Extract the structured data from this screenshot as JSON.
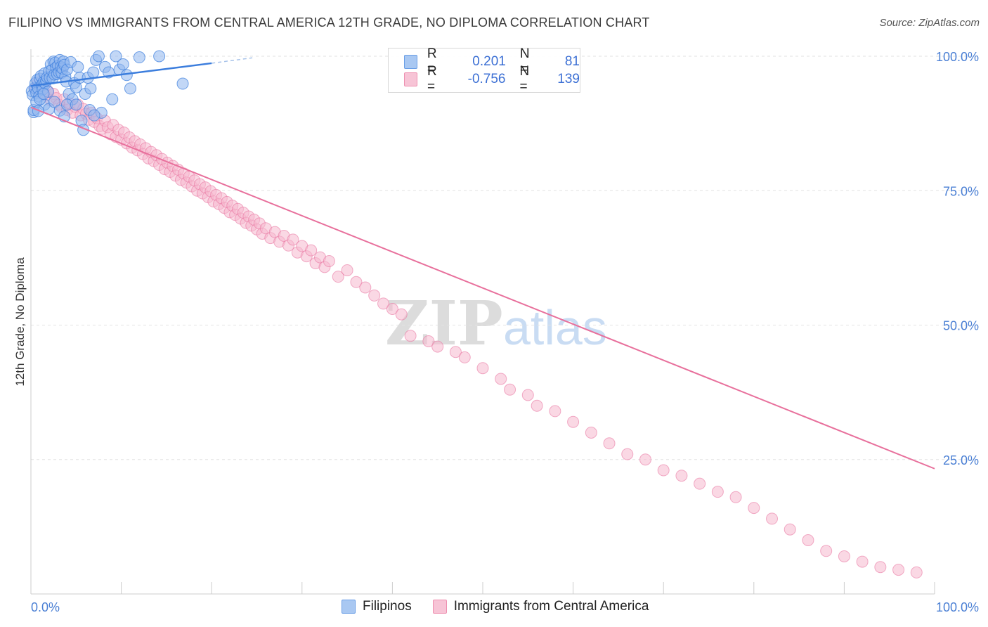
{
  "title": "FILIPINO VS IMMIGRANTS FROM CENTRAL AMERICA 12TH GRADE, NO DIPLOMA CORRELATION CHART",
  "source": "Source: ZipAtlas.com",
  "watermark": {
    "zip": "ZIP",
    "atlas": "atlas"
  },
  "legend": {
    "rows": [
      {
        "r_label": "R =",
        "r_value": "0.201",
        "n_label": "N =",
        "n_value": "81",
        "color": "#6a9ee6",
        "fill": "#a9c8f2"
      },
      {
        "r_label": "R =",
        "r_value": "-0.756",
        "n_label": "N =",
        "n_value": "139",
        "color": "#ee8fb0",
        "fill": "#f7c4d6"
      }
    ]
  },
  "bottom_legend": {
    "items": [
      "Filipinos",
      "Immigrants from Central America"
    ]
  },
  "chart_data": {
    "type": "scatter",
    "title": "FILIPINO VS IMMIGRANTS FROM CENTRAL AMERICA 12TH GRADE, NO DIPLOMA CORRELATION CHART",
    "xlabel": "",
    "ylabel": "12th Grade, No Diploma",
    "xlim": [
      0,
      100
    ],
    "ylim": [
      0,
      100
    ],
    "x_tick_labels": [
      "0.0%",
      "100.0%"
    ],
    "y_tick_labels": [
      "25.0%",
      "50.0%",
      "75.0%",
      "100.0%"
    ],
    "y_ticks": [
      25,
      50,
      75,
      100
    ],
    "grid": true,
    "series": [
      {
        "name": "Filipinos",
        "color": "#3b7ddd",
        "fill": "#8fb6ee",
        "r": 0.201,
        "n": 81,
        "trend": {
          "x0": 0,
          "y0": 94.5,
          "x1": 20,
          "y1": 98.7,
          "dash_to_x": 24.5,
          "dash_to_y": 99.7
        },
        "points": [
          [
            0.1,
            93.5
          ],
          [
            0.2,
            92.8
          ],
          [
            0.3,
            89.6
          ],
          [
            0.4,
            94.1
          ],
          [
            0.5,
            95.0
          ],
          [
            0.6,
            93.2
          ],
          [
            0.7,
            95.6
          ],
          [
            0.8,
            94.0
          ],
          [
            0.9,
            92.5
          ],
          [
            1.0,
            95.8
          ],
          [
            1.1,
            96.3
          ],
          [
            1.2,
            94.6
          ],
          [
            1.3,
            93.8
          ],
          [
            1.4,
            95.2
          ],
          [
            1.5,
            96.8
          ],
          [
            1.6,
            94.9
          ],
          [
            1.7,
            95.5
          ],
          [
            1.8,
            96.1
          ],
          [
            1.9,
            93.4
          ],
          [
            2.0,
            97.2
          ],
          [
            2.1,
            96.0
          ],
          [
            2.2,
            98.5
          ],
          [
            2.3,
            97.4
          ],
          [
            2.4,
            95.9
          ],
          [
            2.5,
            99.0
          ],
          [
            2.6,
            96.6
          ],
          [
            2.7,
            98.8
          ],
          [
            2.8,
            97.9
          ],
          [
            2.9,
            96.7
          ],
          [
            3.0,
            98.2
          ],
          [
            3.1,
            97.0
          ],
          [
            3.2,
            99.3
          ],
          [
            3.3,
            98.0
          ],
          [
            3.4,
            96.9
          ],
          [
            3.5,
            97.7
          ],
          [
            3.6,
            99.0
          ],
          [
            3.7,
            98.4
          ],
          [
            3.8,
            96.2
          ],
          [
            3.9,
            95.3
          ],
          [
            4.0,
            97.5
          ],
          [
            4.2,
            93.0
          ],
          [
            4.4,
            98.9
          ],
          [
            4.6,
            92.0
          ],
          [
            4.8,
            95.0
          ],
          [
            5.0,
            94.2
          ],
          [
            5.2,
            98.0
          ],
          [
            5.4,
            96.0
          ],
          [
            5.6,
            88.0
          ],
          [
            5.8,
            86.3
          ],
          [
            6.0,
            93.0
          ],
          [
            6.3,
            96.0
          ],
          [
            6.6,
            94.0
          ],
          [
            6.9,
            97.0
          ],
          [
            7.2,
            99.3
          ],
          [
            7.5,
            100.0
          ],
          [
            7.8,
            89.5
          ],
          [
            8.2,
            98.0
          ],
          [
            8.6,
            97.0
          ],
          [
            9.0,
            92.0
          ],
          [
            9.4,
            100.0
          ],
          [
            9.8,
            97.5
          ],
          [
            10.2,
            98.5
          ],
          [
            10.6,
            96.5
          ],
          [
            11.0,
            94.0
          ],
          [
            12.0,
            99.8
          ],
          [
            14.2,
            100.0
          ],
          [
            16.8,
            94.9
          ],
          [
            1.5,
            91.0
          ],
          [
            2.0,
            90.2
          ],
          [
            2.6,
            91.5
          ],
          [
            3.2,
            89.9
          ],
          [
            3.7,
            88.8
          ],
          [
            4.0,
            91.0
          ],
          [
            0.3,
            90.0
          ],
          [
            0.6,
            91.5
          ],
          [
            1.0,
            92.0
          ],
          [
            1.4,
            93.0
          ],
          [
            5.0,
            91.0
          ],
          [
            6.5,
            90.0
          ],
          [
            7.0,
            89.0
          ],
          [
            0.8,
            89.8
          ]
        ]
      },
      {
        "name": "Immigrants from Central America",
        "color": "#e8709c",
        "fill": "#f5b8cd",
        "r": -0.756,
        "n": 139,
        "trend": {
          "x0": 0,
          "y0": 90.5,
          "x1": 100,
          "y1": 23.3
        },
        "points": [
          [
            0.5,
            94.0
          ],
          [
            0.8,
            95.1
          ],
          [
            1.0,
            93.2
          ],
          [
            1.3,
            94.5
          ],
          [
            1.6,
            92.8
          ],
          [
            1.9,
            93.5
          ],
          [
            2.2,
            91.8
          ],
          [
            2.5,
            93.0
          ],
          [
            2.8,
            92.2
          ],
          [
            3.1,
            91.0
          ],
          [
            3.4,
            90.5
          ],
          [
            3.7,
            92.0
          ],
          [
            4.0,
            90.0
          ],
          [
            4.3,
            91.2
          ],
          [
            4.6,
            89.5
          ],
          [
            4.9,
            90.6
          ],
          [
            5.2,
            91.0
          ],
          [
            5.5,
            89.0
          ],
          [
            5.8,
            90.2
          ],
          [
            6.1,
            89.3
          ],
          [
            6.4,
            88.2
          ],
          [
            6.7,
            89.5
          ],
          [
            7.0,
            87.8
          ],
          [
            7.3,
            88.5
          ],
          [
            7.6,
            87.0
          ],
          [
            7.9,
            86.5
          ],
          [
            8.2,
            88.0
          ],
          [
            8.5,
            86.8
          ],
          [
            8.8,
            85.5
          ],
          [
            9.1,
            87.2
          ],
          [
            9.4,
            85.0
          ],
          [
            9.7,
            86.3
          ],
          [
            10.0,
            84.5
          ],
          [
            10.3,
            85.8
          ],
          [
            10.6,
            83.8
          ],
          [
            10.9,
            84.9
          ],
          [
            11.2,
            83.0
          ],
          [
            11.5,
            84.2
          ],
          [
            11.8,
            82.5
          ],
          [
            12.1,
            83.6
          ],
          [
            12.4,
            81.8
          ],
          [
            12.7,
            82.9
          ],
          [
            13.0,
            81.0
          ],
          [
            13.3,
            82.2
          ],
          [
            13.6,
            80.5
          ],
          [
            13.9,
            81.6
          ],
          [
            14.2,
            79.8
          ],
          [
            14.5,
            80.9
          ],
          [
            14.8,
            79.0
          ],
          [
            15.1,
            80.2
          ],
          [
            15.4,
            78.5
          ],
          [
            15.7,
            79.6
          ],
          [
            16.0,
            77.8
          ],
          [
            16.3,
            78.9
          ],
          [
            16.6,
            77.0
          ],
          [
            16.9,
            78.2
          ],
          [
            17.2,
            76.5
          ],
          [
            17.5,
            77.6
          ],
          [
            17.8,
            75.8
          ],
          [
            18.1,
            76.9
          ],
          [
            18.4,
            75.0
          ],
          [
            18.7,
            76.2
          ],
          [
            19.0,
            74.5
          ],
          [
            19.3,
            75.6
          ],
          [
            19.6,
            73.8
          ],
          [
            19.9,
            74.9
          ],
          [
            20.2,
            73.0
          ],
          [
            20.5,
            74.2
          ],
          [
            20.8,
            72.5
          ],
          [
            21.1,
            73.6
          ],
          [
            21.4,
            71.8
          ],
          [
            21.7,
            72.9
          ],
          [
            22.0,
            71.0
          ],
          [
            22.3,
            72.2
          ],
          [
            22.6,
            70.5
          ],
          [
            22.9,
            71.6
          ],
          [
            23.2,
            69.8
          ],
          [
            23.5,
            70.9
          ],
          [
            23.8,
            69.0
          ],
          [
            24.1,
            70.2
          ],
          [
            24.4,
            68.5
          ],
          [
            24.7,
            69.6
          ],
          [
            25.0,
            67.8
          ],
          [
            25.3,
            68.9
          ],
          [
            25.6,
            67.0
          ],
          [
            26.0,
            68.0
          ],
          [
            26.5,
            66.2
          ],
          [
            27.0,
            67.3
          ],
          [
            27.5,
            65.5
          ],
          [
            28.0,
            66.6
          ],
          [
            28.5,
            64.8
          ],
          [
            29.0,
            65.9
          ],
          [
            29.5,
            63.5
          ],
          [
            30.0,
            64.7
          ],
          [
            30.5,
            62.8
          ],
          [
            31.0,
            63.9
          ],
          [
            31.5,
            61.5
          ],
          [
            32.0,
            62.6
          ],
          [
            32.5,
            60.8
          ],
          [
            33.0,
            61.9
          ],
          [
            34.0,
            59.0
          ],
          [
            35.0,
            60.2
          ],
          [
            36.0,
            58.0
          ],
          [
            37.0,
            57.0
          ],
          [
            38.0,
            55.5
          ],
          [
            39.0,
            54.0
          ],
          [
            40.0,
            53.0
          ],
          [
            41.0,
            52.0
          ],
          [
            42.0,
            48.0
          ],
          [
            44.0,
            47.0
          ],
          [
            45.0,
            46.0
          ],
          [
            47.0,
            45.0
          ],
          [
            48.0,
            44.0
          ],
          [
            50.0,
            42.0
          ],
          [
            52.0,
            40.0
          ],
          [
            53.0,
            38.0
          ],
          [
            55.0,
            37.0
          ],
          [
            56.0,
            35.0
          ],
          [
            58.0,
            34.0
          ],
          [
            60.0,
            32.0
          ],
          [
            62.0,
            30.0
          ],
          [
            64.0,
            28.0
          ],
          [
            66.0,
            26.0
          ],
          [
            68.0,
            25.0
          ],
          [
            70.0,
            23.0
          ],
          [
            72.0,
            22.0
          ],
          [
            74.0,
            20.5
          ],
          [
            76.0,
            19.0
          ],
          [
            78.0,
            18.0
          ],
          [
            80.0,
            16.0
          ],
          [
            82.0,
            14.0
          ],
          [
            84.0,
            12.0
          ],
          [
            86.0,
            10.0
          ],
          [
            88.0,
            8.0
          ],
          [
            90.0,
            7.0
          ],
          [
            92.0,
            6.0
          ],
          [
            94.0,
            5.0
          ],
          [
            96.0,
            4.5
          ],
          [
            98.0,
            4.0
          ]
        ]
      }
    ]
  }
}
